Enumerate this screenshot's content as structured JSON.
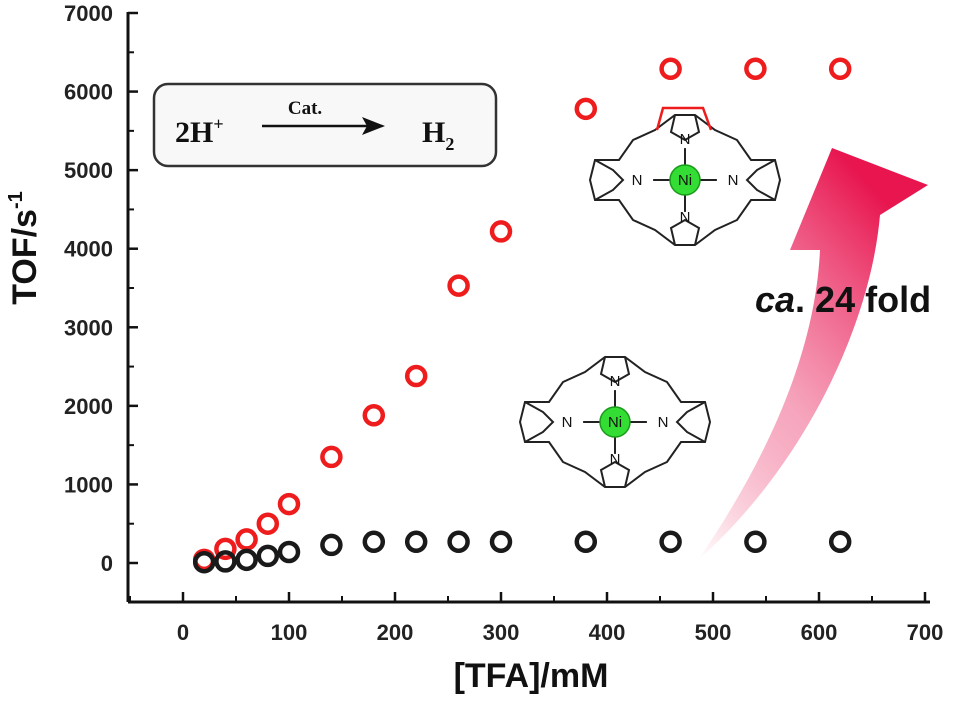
{
  "chart_data": {
    "type": "scatter",
    "xlabel": "[TFA]/mM",
    "ylabel_main": "TOF/s",
    "ylabel_sup": "-1",
    "xlim": [
      -50,
      700
    ],
    "ylim": [
      -500,
      7000
    ],
    "xticks": [
      "0",
      "100",
      "200",
      "300",
      "400",
      "500",
      "600",
      "700"
    ],
    "yticks": [
      "0",
      "1000",
      "2000",
      "3000",
      "4000",
      "5000",
      "6000",
      "7000"
    ],
    "series": [
      {
        "color": "#ee1c1c",
        "points": [
          [
            20,
            40
          ],
          [
            40,
            180
          ],
          [
            60,
            300
          ],
          [
            80,
            500
          ],
          [
            100,
            750
          ],
          [
            140,
            1350
          ],
          [
            180,
            1880
          ],
          [
            220,
            2380
          ],
          [
            260,
            3530
          ],
          [
            300,
            4220
          ],
          [
            380,
            5780
          ],
          [
            460,
            6290
          ],
          [
            540,
            6290
          ],
          [
            620,
            6290
          ]
        ]
      },
      {
        "color": "#1a1a1a",
        "points": [
          [
            20,
            10
          ],
          [
            40,
            20
          ],
          [
            60,
            40
          ],
          [
            80,
            90
          ],
          [
            100,
            140
          ],
          [
            140,
            230
          ],
          [
            180,
            270
          ],
          [
            220,
            270
          ],
          [
            260,
            270
          ],
          [
            300,
            270
          ],
          [
            380,
            270
          ],
          [
            460,
            270
          ],
          [
            540,
            270
          ],
          [
            620,
            270
          ]
        ]
      }
    ],
    "annotations": {
      "reaction_left": "2H",
      "reaction_left_sup": "+",
      "reaction_catalyst": "Cat.",
      "reaction_right": "H",
      "reaction_right_sub": "2",
      "fold_italic": "ca",
      "fold_rest": ". 24 fold",
      "atom_n": "N",
      "atom_ni": "Ni"
    },
    "colors": {
      "accent_red": "#ee1c1c",
      "arrow_pink": "#e8154f",
      "nickel_green": "#33dd33",
      "axis": "#111111"
    }
  }
}
